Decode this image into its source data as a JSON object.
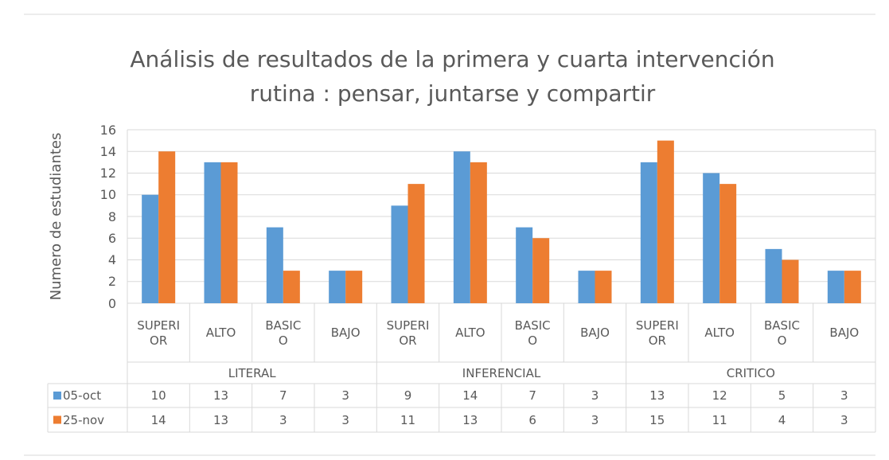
{
  "chart_data": {
    "type": "bar",
    "title": [
      "Análisis de resultados de la primera y cuarta intervención",
      "rutina : pensar, juntarse y compartir"
    ],
    "y_label": "Numero de estudiantes",
    "categories": [
      "SUPERIOR",
      "ALTO",
      "BASICO",
      "BAJO",
      "SUPERIOR",
      "ALTO",
      "BASICO",
      "BAJO",
      "SUPERIOR",
      "ALTO",
      "BASICO",
      "BAJO"
    ],
    "groups": [
      "LITERAL",
      "INFERENCIAL",
      "CRITICO"
    ],
    "series": [
      {
        "name": "05-oct",
        "color": "#5b9bd5",
        "values": [
          10,
          13,
          7,
          3,
          9,
          14,
          7,
          3,
          13,
          12,
          5,
          3
        ]
      },
      {
        "name": "25-nov",
        "color": "#ed7d31",
        "values": [
          14,
          13,
          3,
          3,
          11,
          13,
          6,
          3,
          15,
          11,
          4,
          3
        ]
      }
    ],
    "ylim": [
      0,
      16
    ],
    "yticks": [
      0,
      2,
      4,
      6,
      8,
      10,
      12,
      14,
      16
    ],
    "grid": true
  }
}
